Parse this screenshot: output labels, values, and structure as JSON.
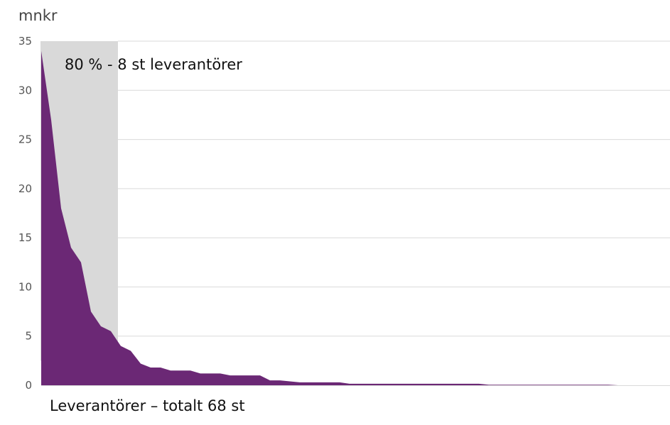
{
  "chart_data": {
    "type": "area",
    "title": "",
    "ylabel": "mnkr",
    "xlabel": "Leverantörer – totalt 68 st",
    "ylim": [
      0,
      35
    ],
    "yticks": [
      "0",
      "5",
      "10",
      "15",
      "20",
      "25",
      "30",
      "35"
    ],
    "grid": true,
    "series_color": "#6b2875",
    "highlight_color": "#d9d9d9",
    "highlight": {
      "label": "80 % - 8 st leverantörer",
      "from_supplier": 1,
      "to_supplier": 8
    },
    "values": [
      34,
      27,
      18,
      14,
      12.5,
      7.5,
      6,
      5.5,
      4,
      3.5,
      2.2,
      1.8,
      1.8,
      1.5,
      1.5,
      1.5,
      1.2,
      1.2,
      1.2,
      1.0,
      1.0,
      1.0,
      1.0,
      0.5,
      0.5,
      0.4,
      0.3,
      0.3,
      0.3,
      0.3,
      0.3,
      0.15,
      0.15,
      0.15,
      0.15,
      0.15,
      0.15,
      0.15,
      0.15,
      0.15,
      0.15,
      0.15,
      0.15,
      0.15,
      0.15,
      0.05,
      0.05,
      0.05,
      0.05,
      0.05,
      0.05,
      0.05,
      0.05,
      0.05,
      0.05,
      0.05,
      0.05,
      0.05,
      0,
      0,
      0,
      0,
      0,
      0,
      0,
      0,
      0,
      0
    ]
  }
}
